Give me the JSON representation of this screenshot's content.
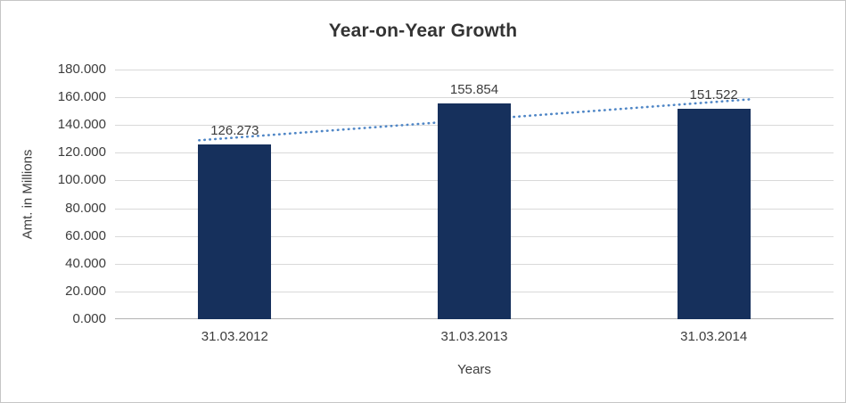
{
  "chart_data": {
    "type": "bar",
    "title": "Year-on-Year Growth",
    "xlabel": "Years",
    "ylabel": "Amt. in Millions",
    "categories": [
      "31.03.2012",
      "31.03.2013",
      "31.03.2014"
    ],
    "values": [
      126.273,
      155.854,
      151.522
    ],
    "data_labels": [
      "126.273",
      "155.854",
      "151.522"
    ],
    "ylim": [
      0,
      180
    ],
    "y_tick_interval": 20,
    "y_tick_labels": [
      "0.000",
      "20.000",
      "40.000",
      "60.000",
      "80.000",
      "100.000",
      "120.000",
      "140.000",
      "160.000",
      "180.000"
    ],
    "grid": "horizontal",
    "legend": "none",
    "bar_color": "#16305C",
    "trendline": {
      "type": "linear",
      "style": "dotted",
      "color": "#4F86C6",
      "start_value": 129.0,
      "end_value": 158.5
    }
  }
}
